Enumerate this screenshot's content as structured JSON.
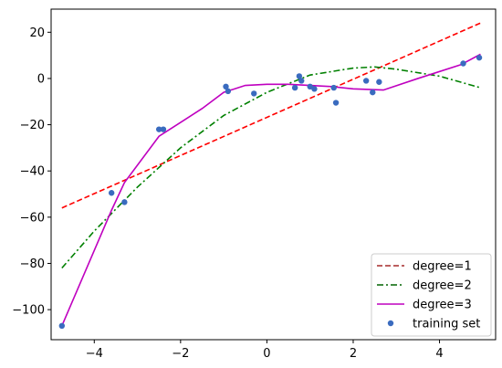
{
  "chart_data": {
    "type": "line",
    "xlim": [
      -5.0,
      5.3
    ],
    "ylim": [
      -113,
      30
    ],
    "x_ticks": [
      -4,
      -2,
      0,
      2,
      4
    ],
    "y_ticks": [
      20,
      0,
      -20,
      -40,
      -60,
      -80,
      -100
    ],
    "x_tick_labels": [
      "−4",
      "−2",
      "0",
      "2",
      "4"
    ],
    "y_tick_labels": [
      "20",
      "0",
      "−20",
      "−40",
      "−60",
      "−80",
      "−100"
    ],
    "grid": false,
    "legend_position": "bottom-right",
    "series": [
      {
        "name": "degree=1",
        "kind": "line",
        "style": "dashed",
        "color": "#ff0000",
        "legend_color": "#a52a2a",
        "x": [
          -4.75,
          4.95
        ],
        "y": [
          -56,
          24
        ]
      },
      {
        "name": "degree=2",
        "kind": "line",
        "style": "dashdot",
        "color": "#008000",
        "legend_color": "#006400",
        "x": [
          -4.75,
          -4.0,
          -3.0,
          -2.0,
          -1.0,
          0.0,
          1.0,
          2.0,
          2.5,
          3.0,
          4.0,
          4.95
        ],
        "y": [
          -82,
          -66,
          -47,
          -30,
          -16,
          -6,
          1.5,
          4.5,
          5,
          4,
          1,
          -4
        ]
      },
      {
        "name": "degree=3",
        "kind": "line",
        "style": "solid",
        "color": "#bf00bf",
        "x": [
          -4.75,
          -3.6,
          -3.3,
          -2.5,
          -2.0,
          -1.5,
          -1.0,
          -0.5,
          0.0,
          0.5,
          1.0,
          1.5,
          2.0,
          2.7,
          3.5,
          4.5,
          4.95
        ],
        "y": [
          -107,
          -57,
          -45,
          -25,
          -19,
          -13,
          -6,
          -3,
          -2.5,
          -2.5,
          -3,
          -3.5,
          -4.5,
          -5,
          0,
          6,
          10.5
        ]
      },
      {
        "name": "training set",
        "kind": "scatter",
        "color": "#3a6bbf",
        "x": [
          -4.75,
          -3.6,
          -3.3,
          -2.5,
          -2.4,
          -0.95,
          -0.9,
          -0.3,
          0.65,
          0.75,
          0.8,
          1.0,
          1.1,
          1.55,
          1.6,
          2.3,
          2.45,
          2.6,
          4.55,
          4.92
        ],
        "y": [
          -107,
          -49.5,
          -53.5,
          -22,
          -22,
          -3.5,
          -5.5,
          -6.5,
          -4,
          1,
          -1,
          -3.5,
          -4.5,
          -4,
          -10.5,
          -1,
          -6,
          -1.5,
          6.5,
          9
        ]
      }
    ]
  }
}
